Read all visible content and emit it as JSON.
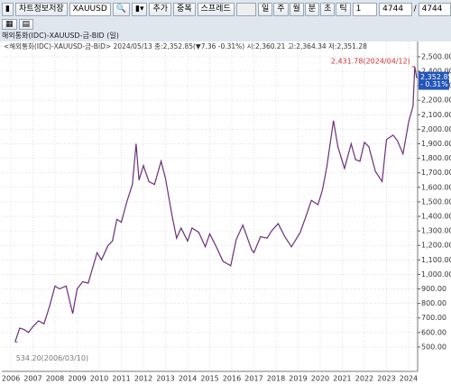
{
  "toolbar": {
    "save": "차트정보저장",
    "symbol": "XAUUSD",
    "add": "추가",
    "overlap": "중복",
    "spread": "스프레드",
    "periods": [
      "일",
      "주",
      "월",
      "분",
      "초",
      "틱"
    ],
    "interval": "1",
    "count": "4744",
    "separator": "/",
    "total": "4744"
  },
  "tab": {
    "title": "해외통화(IDC)-XAUUSD-금-BID (일)"
  },
  "chart_data": {
    "type": "line",
    "info": "<해외통화(IDC)-XAUUSD-금-BID> 2024/05/13 종:2,352.85(▼7.36 -0.31%) 시:2,360.21 고:2,364.34 저:2,351.28",
    "color": "#6a2f7a",
    "grid": true,
    "x": [
      2006.19,
      2006.4,
      2006.6,
      2006.8,
      2007.0,
      2007.25,
      2007.5,
      2007.75,
      2008.0,
      2008.2,
      2008.5,
      2008.8,
      2009.0,
      2009.25,
      2009.5,
      2009.9,
      2010.1,
      2010.4,
      2010.6,
      2010.8,
      2011.0,
      2011.25,
      2011.5,
      2011.67,
      2011.8,
      2012.0,
      2012.25,
      2012.5,
      2012.8,
      2013.0,
      2013.3,
      2013.5,
      2013.7,
      2014.0,
      2014.2,
      2014.5,
      2014.8,
      2015.0,
      2015.3,
      2015.6,
      2015.95,
      2016.2,
      2016.5,
      2016.9,
      2017.0,
      2017.3,
      2017.6,
      2017.8,
      2018.1,
      2018.4,
      2018.7,
      2018.9,
      2019.1,
      2019.4,
      2019.6,
      2019.9,
      2020.1,
      2020.3,
      2020.6,
      2020.8,
      2021.1,
      2021.4,
      2021.6,
      2021.8,
      2022.0,
      2022.2,
      2022.5,
      2022.8,
      2023.0,
      2023.3,
      2023.5,
      2023.75,
      2024.0,
      2024.2,
      2024.28,
      2024.37
    ],
    "values": [
      534.2,
      630,
      620,
      600,
      640,
      680,
      660,
      780,
      920,
      900,
      920,
      730,
      900,
      950,
      940,
      1150,
      1100,
      1200,
      1230,
      1380,
      1360,
      1500,
      1620,
      1900,
      1650,
      1750,
      1640,
      1620,
      1780,
      1660,
      1400,
      1250,
      1320,
      1230,
      1320,
      1290,
      1190,
      1280,
      1190,
      1090,
      1060,
      1240,
      1340,
      1170,
      1150,
      1260,
      1250,
      1300,
      1350,
      1260,
      1190,
      1240,
      1290,
      1420,
      1510,
      1480,
      1580,
      1740,
      2060,
      1880,
      1730,
      1900,
      1790,
      1780,
      1910,
      1880,
      1710,
      1640,
      1930,
      1960,
      1920,
      1830,
      2050,
      2160,
      2431.78,
      2352.85
    ],
    "xlim": [
      2005.59,
      2024.41
    ],
    "ylim": [
      332,
      2605
    ],
    "xticks": [
      2006,
      2007,
      2008,
      2009,
      2010,
      2011,
      2012,
      2013,
      2014,
      2015,
      2016,
      2017,
      2018,
      2019,
      2020,
      2021,
      2022,
      2023,
      2024
    ],
    "yticks": [
      {
        "value": 500,
        "label": "500.00"
      },
      {
        "value": 600,
        "label": "600.00"
      },
      {
        "value": 700,
        "label": "700.00"
      },
      {
        "value": 800,
        "label": "800.00"
      },
      {
        "value": 900,
        "label": "900.00"
      },
      {
        "value": 1000,
        "label": "1,000.00"
      },
      {
        "value": 1100,
        "label": "1,100.00"
      },
      {
        "value": 1200,
        "label": "1,200.00"
      },
      {
        "value": 1300,
        "label": "1,300.00"
      },
      {
        "value": 1400,
        "label": "1,400.00"
      },
      {
        "value": 1500,
        "label": "1,500.00"
      },
      {
        "value": 1600,
        "label": "1,600.00"
      },
      {
        "value": 1700,
        "label": "1,700.00"
      },
      {
        "value": 1800,
        "label": "1,800.00"
      },
      {
        "value": 1900,
        "label": "1,900.00"
      },
      {
        "value": 2000,
        "label": "2,000.00"
      },
      {
        "value": 2100,
        "label": "2,100.00"
      },
      {
        "value": 2200,
        "label": "2,200.00"
      },
      {
        "value": 2300,
        "label": "2,300.00"
      },
      {
        "value": 2400,
        "label": "2,400.00"
      },
      {
        "value": 2500,
        "label": "2,500.00"
      }
    ],
    "annotations": [
      {
        "text": "2,431.78(2024/04/12)",
        "x": 2024.28,
        "y": 2431.78,
        "color": "#d03030"
      },
      {
        "text": "534.20(2006/03/10)",
        "x": 2006.19,
        "y": 534.2,
        "color": "#777777"
      }
    ],
    "last": {
      "value": 2352.85,
      "label": "2,352.85",
      "change": "- 0.31%"
    }
  }
}
